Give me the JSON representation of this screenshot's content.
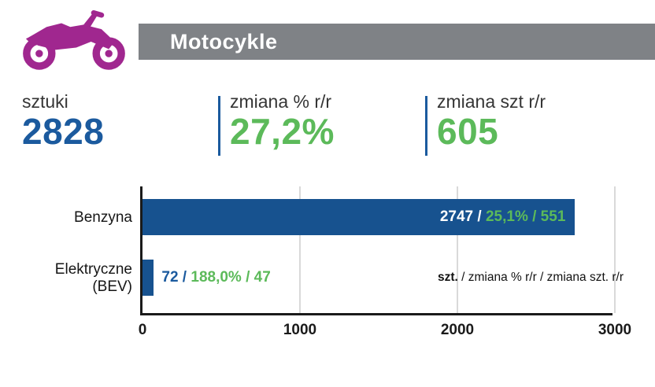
{
  "header": {
    "title": "Motocykle"
  },
  "icon": {
    "name": "motorcycle-icon"
  },
  "stats": {
    "units": {
      "label": "sztuki",
      "value": "2828"
    },
    "pct": {
      "label": "zmiana % r/r",
      "value": "27,2%"
    },
    "delta": {
      "label": "zmiana szt r/r",
      "value": "605"
    }
  },
  "chart_data": {
    "type": "bar",
    "orientation": "horizontal",
    "title": "",
    "xlabel": "",
    "ylabel": "",
    "xlim": [
      0,
      3000
    ],
    "xticks": [
      0,
      1000,
      2000,
      3000
    ],
    "grid": true,
    "bars": [
      {
        "category": "Benzyna",
        "value": 2747,
        "label_units": "2747",
        "label_sep": " / ",
        "label_rest": "25,1% / 551",
        "change_pct": "25,1%",
        "change_units": 551
      },
      {
        "category": "Elektryczne (BEV)",
        "value": 72,
        "label_units": "72",
        "label_sep": " / ",
        "label_rest": "188,0% / 47",
        "change_pct": "188,0%",
        "change_units": 47
      }
    ],
    "legend_note": {
      "bold": "szt.",
      "rest": " / zmiana % r/r / zmiana szt. r/r"
    }
  },
  "colors": {
    "blue": "#1B5A9E",
    "bar_blue": "#17528F",
    "green": "#5CBA5A",
    "purple": "#A0278F",
    "gray": "#7F8286"
  }
}
